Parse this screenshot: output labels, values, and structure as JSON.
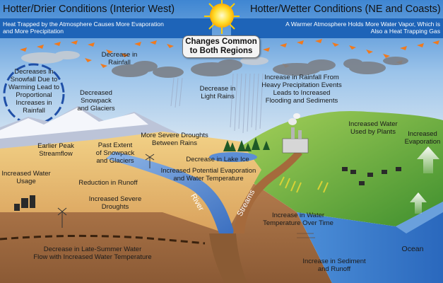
{
  "headers": {
    "left_title": "Hotter/Drier Conditions (Interior West)",
    "right_title": "Hotter/Wetter Conditions (NE and Coasts)",
    "left_subtitle": "Heat Trapped by the Atmosphere Causes More Evaporation\nand More Precipitation",
    "right_subtitle": "A Warmer Atmosphere Holds More Water Vapor, Which is\nAlso a Heat Trapping Gas",
    "center_box": "Changes Common\nto Both Regions"
  },
  "labels": {
    "decrease_rainfall": "Decrease in\nRainfall",
    "snowfall_cycle": "Decreases in\nSnowfall Due to\nWarming Lead to\nProportional\nIncreases in\nRainfall",
    "decreased_snowpack": "Decreased\nSnowpack\nand Glaciers",
    "light_rains": "Decrease in\nLight Rains",
    "heavy_precip": "Increase in Rainfall From\nHeavy Precipitation Events\nLeads to Increased\nFlooding and Sediments",
    "water_plants": "Increased Water\nUsed by Plants",
    "evaporation": "Increased\nEvaporation",
    "severe_droughts_rains": "More Severe Droughts\nBetween Rains",
    "earlier_peak": "Earlier Peak\nStreamflow",
    "past_extent": "Past Extent\nof Snowpack\nand Glaciers",
    "lake_ice": "Decrease in Lake Ice",
    "potential_evap": "Increased Potential Evaporation\nand Water Temperature",
    "water_usage": "Increased Water\nUsage",
    "reduction_runoff": "Reduction in Runoff",
    "increased_droughts": "Increased Severe\nDroughts",
    "river": "River",
    "streams": "Streams",
    "water_temp": "Increase in Water\nTemperature Over Time",
    "late_summer": "Decrease in Late-Summer Water\nFlow with Increased Water Temperature",
    "sediment_runoff": "Increase in Sediment\nand Runoff",
    "ocean": "Ocean"
  },
  "colors": {
    "sky_top": "#4c8fd6",
    "banner": "#1d5fb0",
    "sun": "#ffd21a",
    "desert": "#e5b46a",
    "green": "#6fb34a",
    "ocean": "#2f73c4"
  },
  "icons": [
    "sun-icon",
    "cloud-icon",
    "heat-arrow-icon",
    "upward-arrow-icon",
    "tree-icon",
    "factory-icon",
    "windmill-icon",
    "house-icon"
  ]
}
